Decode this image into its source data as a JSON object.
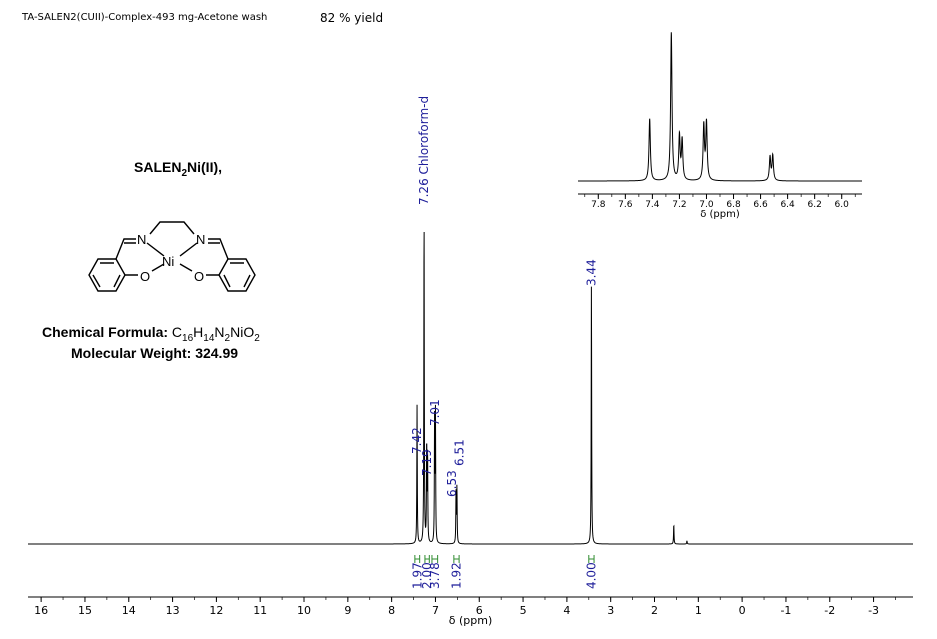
{
  "header": {
    "sample_title": "TA-SALEN2(CUII)-Complex-493 mg-Acetone wash",
    "yield_text": "82 % yield"
  },
  "compound": {
    "name_prefix": "SALEN",
    "name_sub": "2",
    "name_suffix": "Ni(II),",
    "formula_label": "Chemical Formula:",
    "formula_parts": [
      {
        "t": "C"
      },
      {
        "s": "16"
      },
      {
        "t": "H"
      },
      {
        "s": "14"
      },
      {
        "t": "N"
      },
      {
        "s": "2"
      },
      {
        "t": "NiO"
      },
      {
        "s": "2"
      }
    ],
    "mw_label": "Molecular Weight:",
    "mw_value": "324.99",
    "structure_labels": {
      "n_left": "N",
      "n_right": "N",
      "metal": "Ni",
      "o_left": "O",
      "o_right": "O"
    }
  },
  "chart_data": [
    {
      "type": "line",
      "xlabel": "δ (ppm)",
      "xlim": [
        16.3,
        -3.9
      ],
      "x_reversed": true,
      "x_ticks": [
        "16",
        "15",
        "14",
        "13",
        "12",
        "11",
        "10",
        "9",
        "8",
        "7",
        "6",
        "5",
        "4",
        "3",
        "2",
        "1",
        "0",
        "-1",
        "-2",
        "-3"
      ],
      "grid": false,
      "peaks": [
        {
          "ppm": 7.42,
          "height": 0.42
        },
        {
          "ppm": 7.26,
          "height": 1.0
        },
        {
          "ppm": 7.2,
          "height": 0.3
        },
        {
          "ppm": 7.18,
          "height": 0.27
        },
        {
          "ppm": 7.02,
          "height": 0.37
        },
        {
          "ppm": 7.0,
          "height": 0.39
        },
        {
          "ppm": 6.53,
          "height": 0.16
        },
        {
          "ppm": 6.51,
          "height": 0.17
        },
        {
          "ppm": 3.44,
          "height": 0.79
        },
        {
          "ppm": 1.56,
          "height": 0.06
        },
        {
          "ppm": 1.26,
          "height": 0.01
        }
      ],
      "peak_labels": [
        "7.42",
        "7.26 Chloroform-d",
        "7.19",
        "7.01",
        "6.53",
        "6.51",
        "3.44"
      ],
      "integrations": [
        {
          "from": 7.47,
          "to": 7.36,
          "value": "1.97"
        },
        {
          "from": 7.24,
          "to": 7.14,
          "value": "2.00"
        },
        {
          "from": 7.08,
          "to": 6.95,
          "value": "3.78"
        },
        {
          "from": 6.58,
          "to": 6.46,
          "value": "1.92"
        },
        {
          "from": 3.5,
          "to": 3.38,
          "value": "4.00"
        }
      ]
    },
    {
      "type": "line",
      "xlabel": "δ (ppm)",
      "xlim": [
        7.95,
        5.85
      ],
      "x_reversed": true,
      "x_ticks": [
        "7.8",
        "7.6",
        "7.4",
        "7.2",
        "7.0",
        "6.8",
        "6.6",
        "6.4",
        "6.2",
        "6.0"
      ],
      "grid": false,
      "peaks": [
        {
          "ppm": 7.42,
          "height": 0.42
        },
        {
          "ppm": 7.26,
          "height": 1.0
        },
        {
          "ppm": 7.2,
          "height": 0.3
        },
        {
          "ppm": 7.18,
          "height": 0.27
        },
        {
          "ppm": 7.02,
          "height": 0.37
        },
        {
          "ppm": 7.0,
          "height": 0.39
        },
        {
          "ppm": 6.53,
          "height": 0.16
        },
        {
          "ppm": 6.51,
          "height": 0.17
        }
      ]
    }
  ]
}
